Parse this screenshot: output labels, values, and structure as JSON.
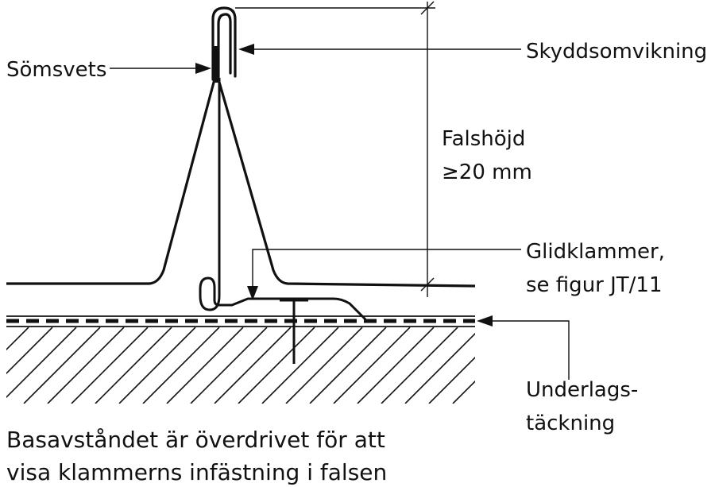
{
  "labels": {
    "somsvets": "Sömsvets",
    "skyddsomvikning": "Skyddsomvikning",
    "falshojd_line1": "Falshöjd",
    "falshojd_line2": "≥20 mm",
    "glidklammer_line1": "Glidklammer,",
    "glidklammer_line2": "se figur JT/11",
    "underlag_line1": "Underlags-",
    "underlag_line2": "täckning"
  },
  "note": {
    "line1": "Basavståndet är överdrivet för att",
    "line2": "visa klammerns infästning i falsen"
  }
}
